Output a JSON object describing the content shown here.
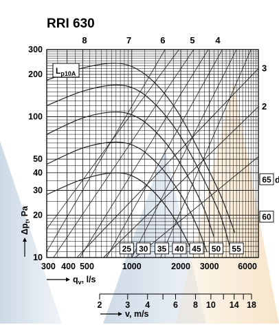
{
  "chart_data": {
    "type": "line",
    "title": "RRI 630",
    "xlabel": "q",
    "xlabel_sub": "v",
    "xlabel_unit": ", l/s",
    "ylabel": "Δp",
    "ylabel_sub": "t",
    "ylabel_unit": ", Pa",
    "x_scale": "log",
    "y_scale": "log",
    "xlim": [
      300,
      6000
    ],
    "ylim": [
      10,
      300
    ],
    "x_ticks": [
      300,
      400,
      500,
      1000,
      2000,
      3000,
      6000
    ],
    "x_tick_labels": [
      "300",
      "400",
      "500",
      "1000",
      "2000",
      "3000",
      "6000"
    ],
    "y_ticks": [
      10,
      20,
      30,
      40,
      50,
      100,
      200,
      300
    ],
    "y_tick_labels": [
      "10",
      "20",
      "30",
      "40",
      "50",
      "100",
      "200",
      "300"
    ],
    "grid": true,
    "sound_label": "L",
    "sound_label_sub": "p10A",
    "speed_axis": {
      "label": "v, m/s",
      "ticks": [
        2,
        3,
        4,
        6,
        8,
        10,
        14,
        18
      ],
      "tick_labels": [
        "2",
        "3",
        "4",
        "6",
        "8",
        "10",
        "14",
        "18"
      ],
      "minor_ticks": [
        5,
        12,
        16
      ]
    },
    "fan_curves": [
      {
        "name": "8",
        "points": [
          [
            300,
            182
          ],
          [
            500,
            222
          ],
          [
            800,
            240
          ],
          [
            1100,
            215
          ],
          [
            1500,
            158
          ],
          [
            2000,
            100
          ],
          [
            2700,
            52
          ],
          [
            3500,
            28
          ],
          [
            4300,
            15
          ]
        ]
      },
      {
        "name": "7",
        "points": [
          [
            300,
            120
          ],
          [
            500,
            152
          ],
          [
            800,
            168
          ],
          [
            1100,
            153
          ],
          [
            1500,
            112
          ],
          [
            2000,
            72
          ],
          [
            2700,
            38
          ],
          [
            3500,
            20
          ],
          [
            4000,
            12
          ]
        ]
      },
      {
        "name": "6",
        "points": [
          [
            300,
            75
          ],
          [
            500,
            98
          ],
          [
            800,
            108
          ],
          [
            1100,
            98
          ],
          [
            1500,
            72
          ],
          [
            2000,
            46
          ],
          [
            2700,
            24
          ],
          [
            3200,
            14
          ]
        ]
      },
      {
        "name": "5",
        "points": [
          [
            300,
            46
          ],
          [
            500,
            60
          ],
          [
            800,
            66
          ],
          [
            1100,
            60
          ],
          [
            1500,
            44
          ],
          [
            2000,
            28
          ],
          [
            2500,
            17
          ],
          [
            2900,
            11
          ]
        ]
      },
      {
        "name": "4",
        "points": [
          [
            300,
            28
          ],
          [
            500,
            36
          ],
          [
            800,
            40
          ],
          [
            1100,
            36
          ],
          [
            1500,
            26
          ],
          [
            2000,
            16
          ],
          [
            2400,
            10.5
          ]
        ]
      }
    ],
    "duct_lines": [
      {
        "name": "3",
        "points": [
          [
            460,
            10
          ],
          [
            6000,
            220
          ]
        ]
      },
      {
        "name": "2",
        "points": [
          [
            670,
            10
          ],
          [
            6000,
            118
          ]
        ]
      },
      {
        "name": "d",
        "points": [
          [
            1050,
            10
          ],
          [
            6000,
            52
          ]
        ]
      }
    ],
    "cross_lines": [
      {
        "points": [
          [
            300,
            11
          ],
          [
            1600,
            300
          ]
        ]
      },
      {
        "points": [
          [
            300,
            16
          ],
          [
            1950,
            300
          ]
        ]
      },
      {
        "points": [
          [
            330,
            10
          ],
          [
            2400,
            300
          ]
        ]
      },
      {
        "points": [
          [
            480,
            10
          ],
          [
            2950,
            300
          ]
        ]
      },
      {
        "points": [
          [
            700,
            10
          ],
          [
            3600,
            300
          ]
        ]
      },
      {
        "points": [
          [
            1000,
            10
          ],
          [
            4400,
            300
          ]
        ]
      },
      {
        "points": [
          [
            1500,
            10
          ],
          [
            5400,
            300
          ]
        ]
      }
    ],
    "sound_levels": [
      {
        "label": "25",
        "q": 930,
        "dp": 11.6
      },
      {
        "label": "30",
        "q": 1180,
        "dp": 11.6
      },
      {
        "label": "35",
        "q": 1530,
        "dp": 11.6
      },
      {
        "label": "40",
        "q": 1960,
        "dp": 11.6
      },
      {
        "label": "45",
        "q": 2500,
        "dp": 11.6
      },
      {
        "label": "50",
        "q": 3300,
        "dp": 11.6
      },
      {
        "label": "55",
        "q": 4400,
        "dp": 11.6
      },
      {
        "label": "60",
        "q": 6200,
        "dp": 19.5
      },
      {
        "label": "65",
        "q": 6200,
        "dp": 36
      }
    ],
    "colors": {
      "grid": "#000000",
      "curve": "#222222",
      "watermark_blue": "#6f93b8",
      "watermark_orange": "#e8b56a"
    }
  }
}
